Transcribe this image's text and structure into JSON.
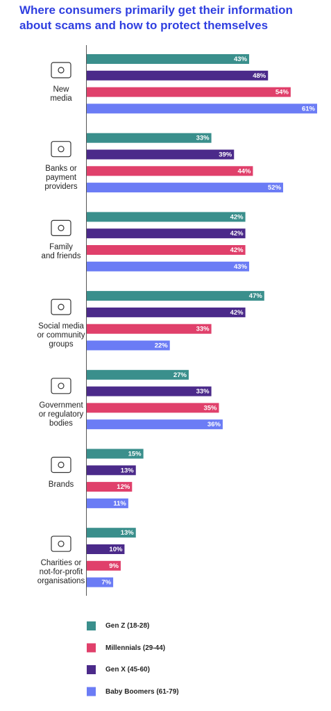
{
  "chart_data": {
    "type": "bar",
    "orientation": "horizontal",
    "title": "Where consumers primarily get their information\nabout scams and how to protect themselves",
    "categories": [
      "New\nmedia",
      "Banks or\npayment\nproviders",
      "Family\nand friends",
      "Social media\nor community\ngroups",
      "Government\nor regulatory\nbodies",
      "Brands",
      "Charities or\nnot-for-profit\norganisations"
    ],
    "series": [
      {
        "name": "Gen Z (18-28)",
        "color": "#3a8f8c",
        "values": [
          43,
          33,
          42,
          47,
          27,
          15,
          13
        ],
        "value_labels": [
          "43%",
          "33%",
          "42%",
          "47%",
          "27%",
          "15%",
          "13%"
        ]
      },
      {
        "name": "Millennials (29-44)",
        "color": "#e0406b",
        "values": [
          54,
          44,
          42,
          33,
          35,
          12,
          9
        ],
        "value_labels": [
          "54%",
          "44%",
          "42%",
          "33%",
          "35%",
          "12%",
          "9%"
        ]
      },
      {
        "name": "Gen X (45-60)",
        "color": "#4b2a8a",
        "values": [
          48,
          39,
          42,
          42,
          33,
          13,
          10
        ],
        "value_labels": [
          "48%",
          "39%",
          "42%",
          "42%",
          "33%",
          "13%",
          "10%"
        ]
      },
      {
        "name": "Baby Boomers (61-79)",
        "color": "#6b7cf5",
        "values": [
          61,
          52,
          43,
          22,
          36,
          11,
          7
        ],
        "value_labels": [
          "61%",
          "52%",
          "43%",
          "22%",
          "36%",
          "11%",
          "7%"
        ]
      }
    ]
  }
}
